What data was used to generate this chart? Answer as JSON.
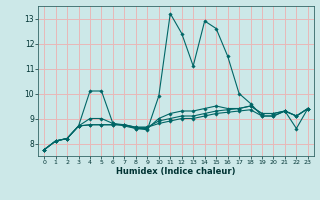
{
  "xlabel": "Humidex (Indice chaleur)",
  "bg_color": "#cce8e8",
  "grid_color": "#e8b8b8",
  "line_color": "#006666",
  "xlim": [
    -0.5,
    23.5
  ],
  "ylim": [
    7.5,
    13.5
  ],
  "xticks": [
    0,
    1,
    2,
    3,
    4,
    5,
    6,
    7,
    8,
    9,
    10,
    11,
    12,
    13,
    14,
    15,
    16,
    17,
    18,
    19,
    20,
    21,
    22,
    23
  ],
  "yticks": [
    8,
    9,
    10,
    11,
    12,
    13
  ],
  "series": [
    [
      7.75,
      8.1,
      8.2,
      8.7,
      10.1,
      10.1,
      8.8,
      8.75,
      8.6,
      8.55,
      9.9,
      13.2,
      12.4,
      11.1,
      12.9,
      12.6,
      11.5,
      10.0,
      9.6,
      9.1,
      9.1,
      9.3,
      8.6,
      9.4
    ],
    [
      7.75,
      8.1,
      8.2,
      8.7,
      8.75,
      8.75,
      8.75,
      8.75,
      8.65,
      8.65,
      8.8,
      8.9,
      9.0,
      9.0,
      9.1,
      9.2,
      9.25,
      9.3,
      9.35,
      9.1,
      9.1,
      9.3,
      9.1,
      9.4
    ],
    [
      7.75,
      8.1,
      8.2,
      8.7,
      8.75,
      8.75,
      8.75,
      8.75,
      8.65,
      8.65,
      8.9,
      9.0,
      9.1,
      9.1,
      9.2,
      9.3,
      9.35,
      9.4,
      9.5,
      9.2,
      9.2,
      9.3,
      9.1,
      9.4
    ],
    [
      7.75,
      8.1,
      8.2,
      8.7,
      9.0,
      9.0,
      8.8,
      8.7,
      8.6,
      8.6,
      9.0,
      9.2,
      9.3,
      9.3,
      9.4,
      9.5,
      9.4,
      9.4,
      9.5,
      9.2,
      9.2,
      9.3,
      9.1,
      9.4
    ]
  ]
}
